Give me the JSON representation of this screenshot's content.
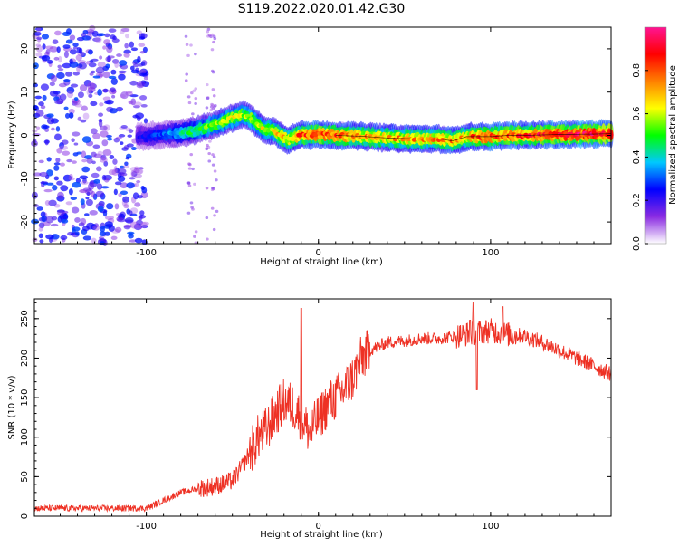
{
  "figure_title": "S119.2022.020.01.42.G30",
  "colors": {
    "snr_line": "#ee3124",
    "spectral_core": "#e02020",
    "spectral_scatter": "#7a22ee"
  },
  "chart_data": [
    {
      "type": "heatmap",
      "title": "",
      "xlabel": "Height of straight line (km)",
      "ylabel": "Frequency (Hz)",
      "xlim": [
        -165,
        170
      ],
      "ylim": [
        -25,
        25
      ],
      "x_ticks": [
        "-100",
        "0",
        "100"
      ],
      "x_tick_values": [
        -100,
        0,
        100
      ],
      "y_ticks": [
        "-20",
        "-10",
        "0",
        "10",
        "20"
      ],
      "y_tick_values": [
        -20,
        -10,
        0,
        10,
        20
      ],
      "colorbar": {
        "label": "Normalized spectral amplitude",
        "range": [
          0,
          1
        ],
        "ticks": [
          "0.0",
          "0.2",
          "0.4",
          "0.6",
          "0.8"
        ],
        "tick_values": [
          0,
          0.2,
          0.4,
          0.6,
          0.8
        ],
        "colormap": [
          "#ffffff",
          "#8a2be2",
          "#0000ff",
          "#00c8ff",
          "#00ff00",
          "#ffff00",
          "#ff8000",
          "#ff0000",
          "#ff1493"
        ]
      },
      "ridge": {
        "x": [
          -105,
          -90,
          -75,
          -60,
          -50,
          -44,
          -38,
          -32,
          -26,
          -22,
          -18,
          -14,
          -10,
          -5,
          0,
          10,
          25,
          40,
          55,
          70,
          78,
          82,
          86,
          92,
          100,
          110,
          120,
          140,
          160,
          170
        ],
        "y": [
          -0.3,
          0.2,
          0.8,
          2.5,
          4.0,
          5.0,
          3.5,
          1.5,
          1.0,
          0.0,
          -1.0,
          -0.5,
          0.2,
          0.0,
          0.3,
          0.0,
          -0.2,
          -0.6,
          -0.8,
          -0.8,
          -1.3,
          -0.8,
          -0.3,
          -0.3,
          -0.3,
          0.0,
          0.0,
          0.2,
          0.3,
          0.4
        ],
        "amplitude": [
          0.22,
          0.3,
          0.45,
          0.55,
          0.6,
          0.58,
          0.6,
          0.6,
          0.62,
          0.7,
          0.65,
          0.72,
          0.78,
          0.78,
          0.85,
          0.78,
          0.72,
          0.7,
          0.72,
          0.72,
          0.72,
          0.7,
          0.72,
          0.78,
          0.8,
          0.8,
          0.82,
          0.88,
          0.9,
          0.9
        ]
      },
      "scatter_region": {
        "x": [
          -165,
          -100
        ],
        "y": [
          -25,
          25
        ]
      }
    },
    {
      "type": "line",
      "title": "",
      "xlabel": "Height of straight line (km)",
      "ylabel": "SNR (10 * v/v)",
      "xlim": [
        -165,
        170
      ],
      "ylim": [
        0,
        275
      ],
      "x_ticks": [
        "-100",
        "0",
        "100"
      ],
      "x_tick_values": [
        -100,
        0,
        100
      ],
      "y_ticks": [
        "0",
        "50",
        "100",
        "150",
        "200",
        "250"
      ],
      "y_tick_values": [
        0,
        50,
        100,
        150,
        200,
        250
      ],
      "envelope": {
        "x": [
          -165,
          -130,
          -100,
          -90,
          -80,
          -70,
          -60,
          -50,
          -45,
          -40,
          -35,
          -30,
          -25,
          -20,
          -15,
          -10,
          -5,
          0,
          5,
          10,
          15,
          20,
          25,
          30,
          40,
          50,
          60,
          70,
          80,
          90,
          100,
          110,
          120,
          130,
          140,
          150,
          160,
          170
        ],
        "y": [
          10,
          10,
          10,
          20,
          30,
          35,
          38,
          45,
          60,
          80,
          100,
          110,
          130,
          145,
          140,
          125,
          105,
          125,
          140,
          150,
          160,
          175,
          200,
          210,
          220,
          222,
          225,
          225,
          228,
          232,
          235,
          230,
          228,
          220,
          210,
          200,
          190,
          180
        ]
      },
      "spikes": [
        {
          "x": -10,
          "y": 263
        },
        {
          "x": 90,
          "y": 270
        },
        {
          "x": 92,
          "y": 160
        },
        {
          "x": 107,
          "y": 265
        },
        {
          "x": 88,
          "y": 248
        }
      ]
    }
  ]
}
